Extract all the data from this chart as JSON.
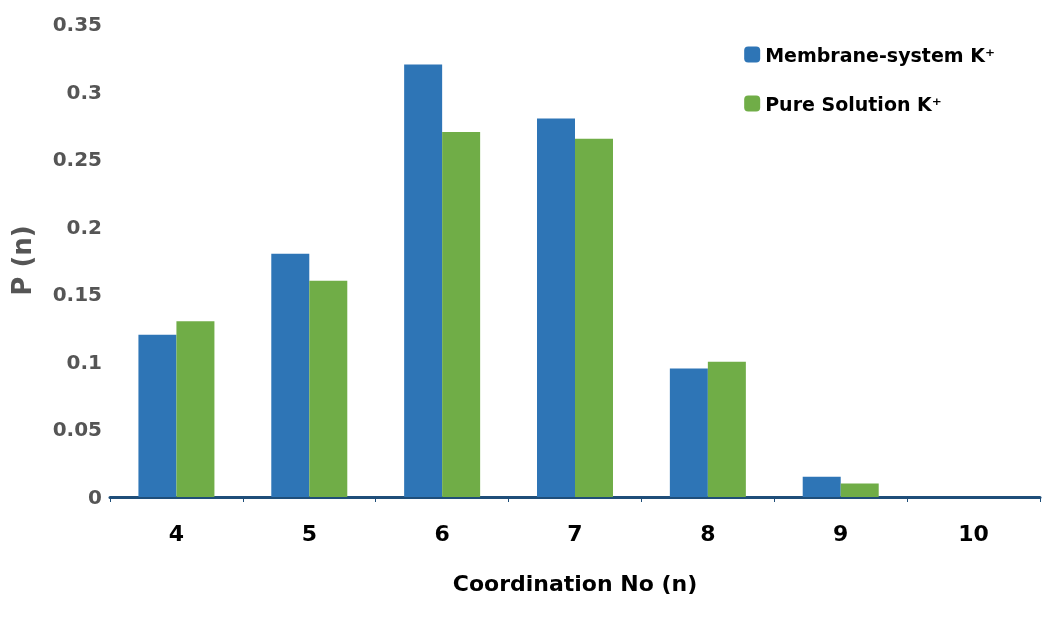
{
  "chart_data": {
    "type": "bar",
    "xlabel": "Coordination No (n)",
    "ylabel": "P (n)",
    "categories": [
      "4",
      "5",
      "6",
      "7",
      "8",
      "9",
      "10"
    ],
    "series": [
      {
        "name": "Membrane-system K⁺",
        "color": "#2e75b6",
        "values": [
          0.12,
          0.18,
          0.32,
          0.28,
          0.095,
          0.015,
          0
        ]
      },
      {
        "name": "Pure Solution K⁺",
        "color": "#70ad47",
        "values": [
          0.13,
          0.16,
          0.27,
          0.265,
          0.1,
          0.01,
          0
        ]
      }
    ],
    "ylim": [
      0,
      0.35
    ],
    "yticks": [
      0,
      0.05,
      0.1,
      0.15,
      0.2,
      0.25,
      0.3,
      0.35
    ],
    "grid": false,
    "legend": "top right"
  }
}
